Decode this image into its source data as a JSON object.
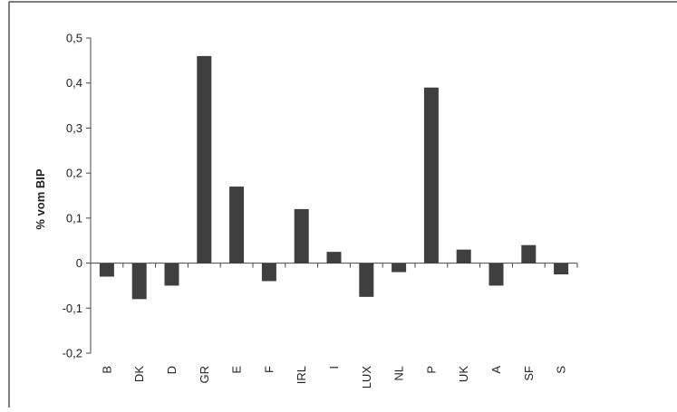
{
  "chart_data": {
    "type": "bar",
    "title": "",
    "xlabel": "",
    "ylabel": "% vom BIP",
    "ylim": [
      -0.2,
      0.5
    ],
    "yticks": [
      -0.2,
      -0.1,
      0,
      0.1,
      0.2,
      0.3,
      0.4,
      0.5
    ],
    "ytick_labels": [
      "-0,2",
      "-0,1",
      "0",
      "0,1",
      "0,2",
      "0,3",
      "0,4",
      "0,5"
    ],
    "categories": [
      "B",
      "DK",
      "D",
      "GR",
      "E",
      "F",
      "IRL",
      "I",
      "LUX",
      "NL",
      "P",
      "UK",
      "A",
      "SF",
      "S"
    ],
    "values": [
      -0.03,
      -0.08,
      -0.05,
      0.46,
      0.17,
      -0.04,
      0.12,
      0.025,
      -0.075,
      -0.02,
      0.39,
      0.03,
      -0.05,
      0.04,
      -0.025
    ],
    "bar_color": "#3f3f3f",
    "grid": false,
    "legend": "none"
  }
}
